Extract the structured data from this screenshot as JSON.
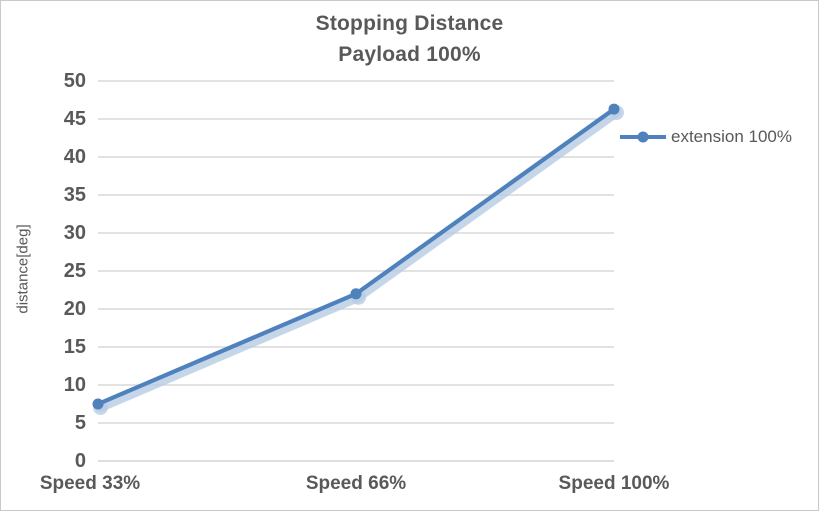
{
  "chart": {
    "title_line1": "Stopping Distance",
    "title_line2": "Payload 100%"
  },
  "chart_data": {
    "type": "line",
    "title": "Stopping Distance Payload 100%",
    "categories": [
      "Speed 33%",
      "Speed 66%",
      "Speed 100%"
    ],
    "series": [
      {
        "name": "extension 100%",
        "values": [
          7.5,
          22,
          46.3
        ],
        "color": "#4F81BD",
        "shadow_color": "#B8CCE4",
        "marker": "circle"
      }
    ],
    "xlabel": "",
    "ylabel": "distance[deg]",
    "ylim": [
      0,
      50
    ],
    "ytick_step": 5,
    "yticks": [
      0,
      5,
      10,
      15,
      20,
      25,
      30,
      35,
      40,
      45,
      50
    ],
    "grid": true,
    "gridline_color": "#D9D9D9",
    "axis_line_color": "#D4D4D4",
    "text_color": "#595959",
    "legend_position": "right"
  }
}
